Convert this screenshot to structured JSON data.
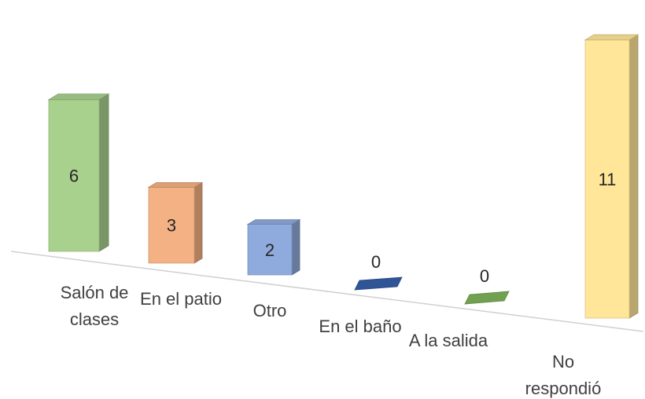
{
  "chart_data": {
    "type": "bar",
    "style": "3d-perspective",
    "categories": [
      "Salón de clases",
      "En el patio",
      "Otro",
      "En el baño",
      "A la salida",
      "No respondió"
    ],
    "category_lines": [
      [
        "Salón de",
        "clases"
      ],
      [
        "En el patio"
      ],
      [
        "Otro"
      ],
      [
        "En el baño"
      ],
      [
        "A la salida"
      ],
      [
        "No",
        "respondió"
      ]
    ],
    "values": [
      6,
      3,
      2,
      0,
      0,
      11
    ],
    "value_labels": [
      "6",
      "3",
      "2",
      "0",
      "0",
      "11"
    ],
    "colors": [
      "#a9d18e",
      "#f4b183",
      "#8faadc",
      "#2f5597",
      "#70a050",
      "#ffe699"
    ],
    "title": "",
    "xlabel": "",
    "ylabel": "",
    "ylim": [
      0,
      11
    ],
    "grid": false,
    "legend": "none"
  }
}
